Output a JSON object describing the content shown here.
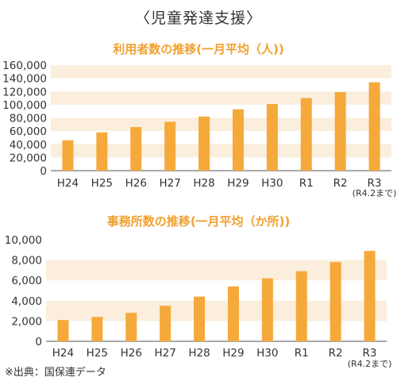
{
  "title": "〈児童発達支援〉",
  "source": "※出典：国保連データ",
  "colors": {
    "bar": "#f5a93a",
    "band": "#fbeedd",
    "title_accent": "#f0a030",
    "axis": "#555555"
  },
  "chart_data": [
    {
      "type": "bar",
      "title": "利用者数の推移(一月平均（人))",
      "categories": [
        "H24",
        "H25",
        "H26",
        "H27",
        "H28",
        "H29",
        "H30",
        "R1",
        "R2",
        "R3"
      ],
      "category_note": "(R4.2まで)",
      "values": [
        46000,
        58000,
        66000,
        74000,
        82000,
        93000,
        101000,
        110000,
        119000,
        134000
      ],
      "yticks": [
        "0",
        "20,000",
        "40,000",
        "60,000",
        "80,000",
        "100,000",
        "120,000",
        "140,000",
        "160,000"
      ],
      "ylim": [
        0,
        160000
      ],
      "xlabel": "",
      "ylabel": "",
      "grid": "alternating horizontal bands"
    },
    {
      "type": "bar",
      "title": "事務所数の推移(一月平均（か所))",
      "categories": [
        "H24",
        "H25",
        "H26",
        "H27",
        "H28",
        "H29",
        "H30",
        "R1",
        "R2",
        "R3"
      ],
      "category_note": "(R4.2まで)",
      "values": [
        2100,
        2400,
        2800,
        3500,
        4400,
        5400,
        6200,
        6900,
        7800,
        8900
      ],
      "yticks": [
        "0",
        "2,000",
        "4,000",
        "6,000",
        "8,000",
        "10,000"
      ],
      "ylim": [
        0,
        10000
      ],
      "xlabel": "",
      "ylabel": "",
      "grid": "alternating horizontal bands"
    }
  ]
}
